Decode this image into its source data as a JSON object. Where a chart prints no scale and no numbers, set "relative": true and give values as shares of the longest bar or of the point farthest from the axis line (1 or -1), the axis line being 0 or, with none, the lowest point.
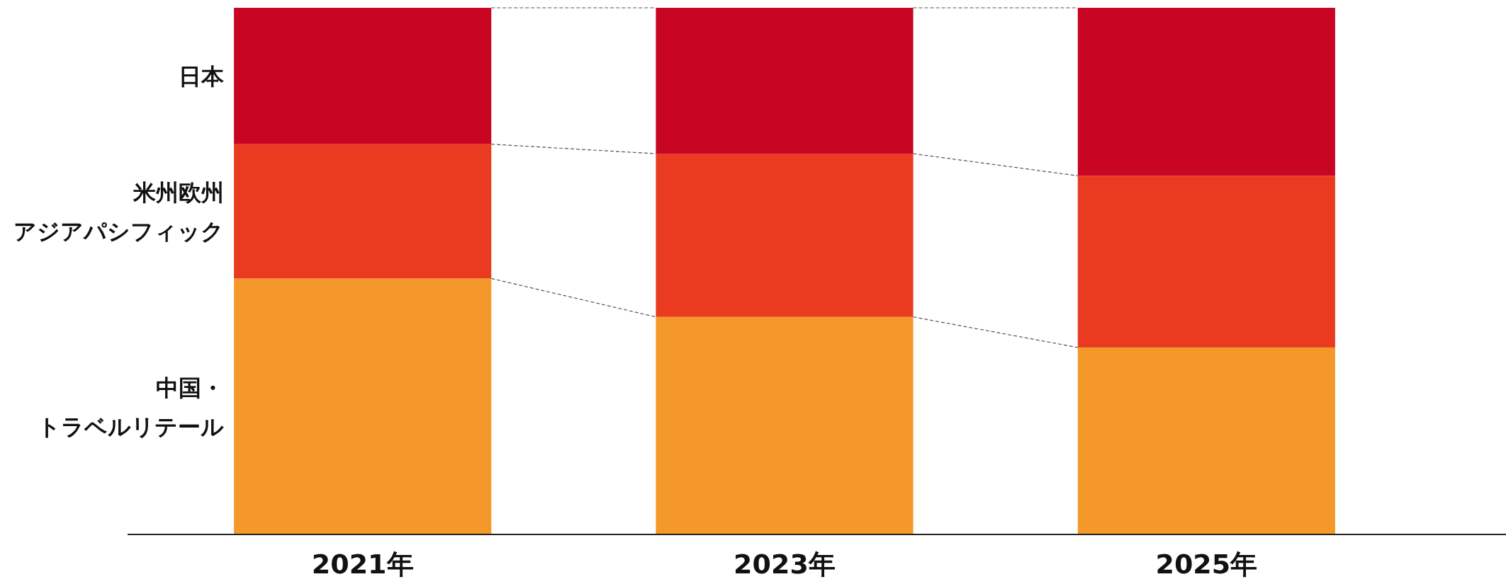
{
  "chart_data": {
    "type": "bar",
    "stacked": true,
    "relative": true,
    "legend": "left",
    "categories": [
      "2021年",
      "2023年",
      "2025年"
    ],
    "series": [
      {
        "name": "中国・トラベルリテール",
        "color": "#f5982a",
        "values": [
          0.486,
          0.413,
          0.355
        ]
      },
      {
        "name": "米州欧州アジアパシフィック",
        "color": "#ea3a20",
        "values": [
          0.255,
          0.31,
          0.326
        ]
      },
      {
        "name": "日本",
        "color": "#c80522",
        "values": [
          0.259,
          0.277,
          0.319
        ]
      }
    ]
  }
}
